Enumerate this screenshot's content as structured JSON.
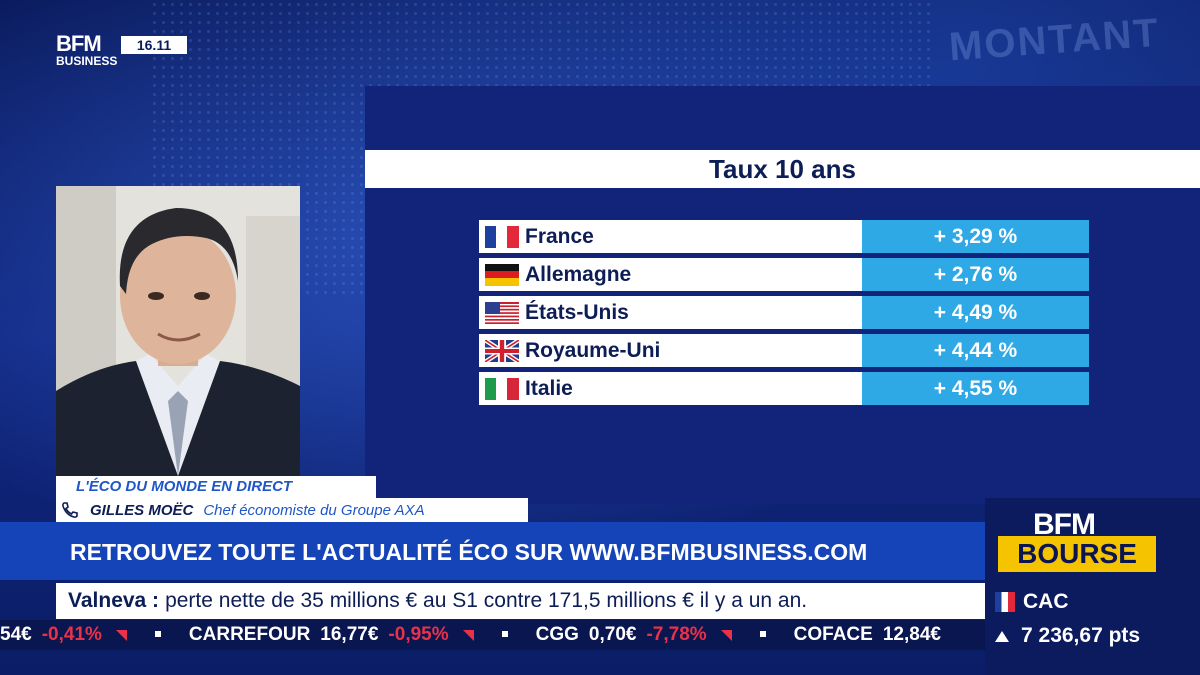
{
  "channel": {
    "logo_top": "BFM",
    "logo_bottom": "BUSINESS",
    "clock": "16.11",
    "bg_text": "MONTANT"
  },
  "panel": {
    "title": "Taux 10 ans",
    "rows": [
      {
        "country": "France",
        "value": "+ 3,29 %",
        "flag": "france-flag-icon"
      },
      {
        "country": "Allemagne",
        "value": "+ 2,76 %",
        "flag": "germany-flag-icon"
      },
      {
        "country": "États-Unis",
        "value": "+ 4,49 %",
        "flag": "usa-flag-icon"
      },
      {
        "country": "Royaume-Uni",
        "value": "+ 4,44 %",
        "flag": "uk-flag-icon"
      },
      {
        "country": "Italie",
        "value": "+ 4,55 %",
        "flag": "italy-flag-icon"
      }
    ]
  },
  "lower_third": {
    "show": "L'ÉCO DU MONDE EN DIRECT",
    "guest_name": "GILLES MOËC",
    "guest_role": "Chef économiste du Groupe AXA",
    "promo": "RETROUVEZ TOUTE L'ACTUALITÉ ÉCO SUR WWW.BFMBUSINESS.COM",
    "news_key": "Valneva :",
    "news_text": "perte nette de 35 millions € au S1 contre 171,5 millions € il y a un an."
  },
  "ticker": {
    "lead": "54€",
    "items": [
      {
        "change": "-0,41%"
      },
      {
        "name": "CARREFOUR",
        "price": "16,77€",
        "change": "-0,95%"
      },
      {
        "name": "CGG",
        "price": "0,70€",
        "change": "-7,78%"
      },
      {
        "name": "COFACE",
        "price": "12,84€",
        "change": ""
      }
    ]
  },
  "bourse": {
    "brand": "BFM",
    "label": "BOURSE",
    "index_name": "CAC",
    "index_value": "7 236,67 pts"
  },
  "colors": {
    "accent_blue": "#2fa8e6",
    "bourse_yellow": "#f6c300",
    "negative": "#e8324a"
  }
}
